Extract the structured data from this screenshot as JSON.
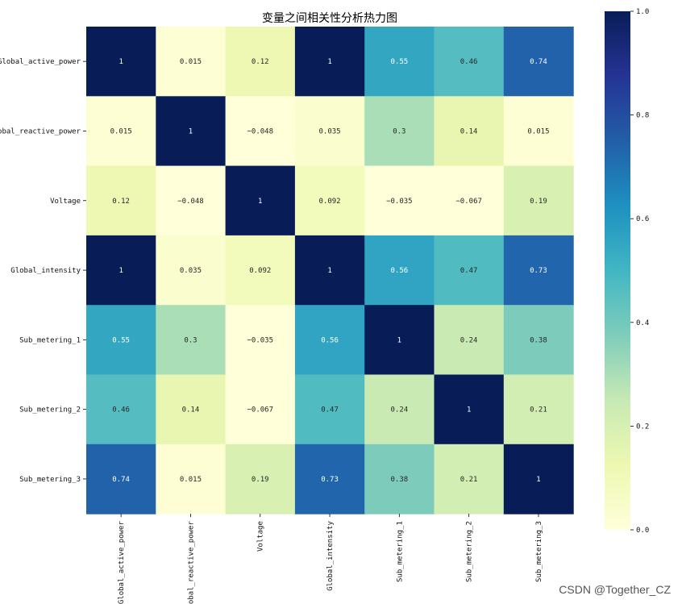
{
  "watermark": "CSDN @Together_CZ",
  "colorbar": {
    "ticks": [
      {
        "value": 0.0,
        "label": "0.0"
      },
      {
        "value": 0.2,
        "label": "0.2"
      },
      {
        "value": 0.4,
        "label": "0.4"
      },
      {
        "value": 0.6,
        "label": "0.6"
      },
      {
        "value": 0.8,
        "label": "0.8"
      },
      {
        "value": 1.0,
        "label": "1.0"
      }
    ],
    "range": [
      0,
      1
    ],
    "colormap": "YlGnBu",
    "stops": [
      "#ffffd9",
      "#edf8b1",
      "#c7e9b4",
      "#7fcdbb",
      "#41b6c4",
      "#1d91c0",
      "#225ea8",
      "#253494",
      "#081d58"
    ]
  },
  "chart_data": {
    "type": "heatmap",
    "title": "变量之间相关性分析热力图",
    "rows": [
      "Global_active_power",
      "Global_reactive_power",
      "Voltage",
      "Global_intensity",
      "Sub_metering_1",
      "Sub_metering_2",
      "Sub_metering_3"
    ],
    "columns": [
      "Global_active_power",
      "Global_reactive_power",
      "Voltage",
      "Global_intensity",
      "Sub_metering_1",
      "Sub_metering_2",
      "Sub_metering_3"
    ],
    "values": [
      [
        1,
        0.015,
        0.12,
        1,
        0.55,
        0.46,
        0.74
      ],
      [
        0.015,
        1,
        -0.048,
        0.035,
        0.3,
        0.14,
        0.015
      ],
      [
        0.12,
        -0.048,
        1,
        0.092,
        -0.035,
        -0.067,
        0.19
      ],
      [
        1,
        0.035,
        0.092,
        1,
        0.56,
        0.47,
        0.73
      ],
      [
        0.55,
        0.3,
        -0.035,
        0.56,
        1,
        0.24,
        0.38
      ],
      [
        0.46,
        0.14,
        -0.067,
        0.47,
        0.24,
        1,
        0.21
      ],
      [
        0.74,
        0.015,
        0.19,
        0.73,
        0.38,
        0.21,
        1
      ]
    ],
    "labels": [
      [
        "1",
        "0.015",
        "0.12",
        "1",
        "0.55",
        "0.46",
        "0.74"
      ],
      [
        "0.015",
        "1",
        "−0.048",
        "0.035",
        "0.3",
        "0.14",
        "0.015"
      ],
      [
        "0.12",
        "−0.048",
        "1",
        "0.092",
        "−0.035",
        "−0.067",
        "0.19"
      ],
      [
        "1",
        "0.035",
        "0.092",
        "1",
        "0.56",
        "0.47",
        "0.73"
      ],
      [
        "0.55",
        "0.3",
        "−0.035",
        "0.56",
        "1",
        "0.24",
        "0.38"
      ],
      [
        "0.46",
        "0.14",
        "−0.067",
        "0.47",
        "0.24",
        "1",
        "0.21"
      ],
      [
        "0.74",
        "0.015",
        "0.19",
        "0.73",
        "0.38",
        "0.21",
        "1"
      ]
    ]
  }
}
